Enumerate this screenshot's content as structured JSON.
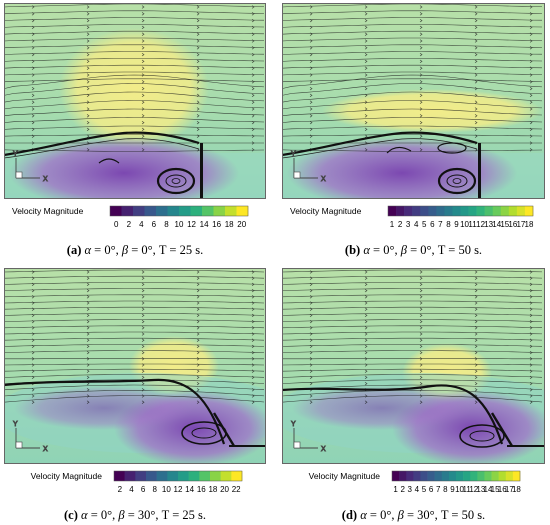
{
  "panels": [
    {
      "id": "a",
      "caption": {
        "letter": "(a)",
        "alpha": "α",
        "alpha_val": " = 0°, ",
        "beta": "β",
        "beta_val": " = 0°, T = 25 s."
      },
      "colorbar": {
        "label": "Velocity Magnitude",
        "ticks": [
          "0",
          "2",
          "4",
          "6",
          "8",
          "10",
          "12",
          "14",
          "16",
          "18",
          "20"
        ]
      },
      "style": "flat"
    },
    {
      "id": "b",
      "caption": {
        "letter": "(b)",
        "alpha": "α",
        "alpha_val": " = 0°, ",
        "beta": "β",
        "beta_val": " = 0°, T = 50 s."
      },
      "colorbar": {
        "label": "Velocity Magnitude",
        "ticks": [
          "1",
          "2",
          "3",
          "4",
          "5",
          "6",
          "7",
          "8",
          "9",
          "10",
          "11",
          "12",
          "13",
          "14",
          "15",
          "16",
          "17",
          "18"
        ]
      },
      "style": "flat"
    },
    {
      "id": "c",
      "caption": {
        "letter": "(c)",
        "alpha": "α",
        "alpha_val": " = 0°, ",
        "beta": "β",
        "beta_val": " = 30°, T = 25 s."
      },
      "colorbar": {
        "label": "Velocity Magnitude",
        "ticks": [
          "2",
          "4",
          "6",
          "8",
          "10",
          "12",
          "14",
          "16",
          "18",
          "20",
          "22"
        ]
      },
      "style": "slope"
    },
    {
      "id": "d",
      "caption": {
        "letter": "(d)",
        "alpha": "α",
        "alpha_val": " = 0°, ",
        "beta": "β",
        "beta_val": " = 30°, T = 50 s."
      },
      "colorbar": {
        "label": "Velocity Magnitude",
        "ticks": [
          "1",
          "2",
          "3",
          "4",
          "5",
          "6",
          "7",
          "8",
          "9",
          "10",
          "11",
          "12",
          "13",
          "14",
          "15",
          "16",
          "17",
          "18"
        ]
      },
      "style": "slope"
    }
  ],
  "axes_triad": {
    "x": "X",
    "y": "Y"
  },
  "colors": {
    "field_top": "#b8e0a8",
    "field_mid": "#8fd3b6",
    "fast_zone": "#f2ec8a",
    "wake": "#a070c8",
    "wake_deep": "#7a40b0",
    "streamline": "#1a1a1a"
  }
}
